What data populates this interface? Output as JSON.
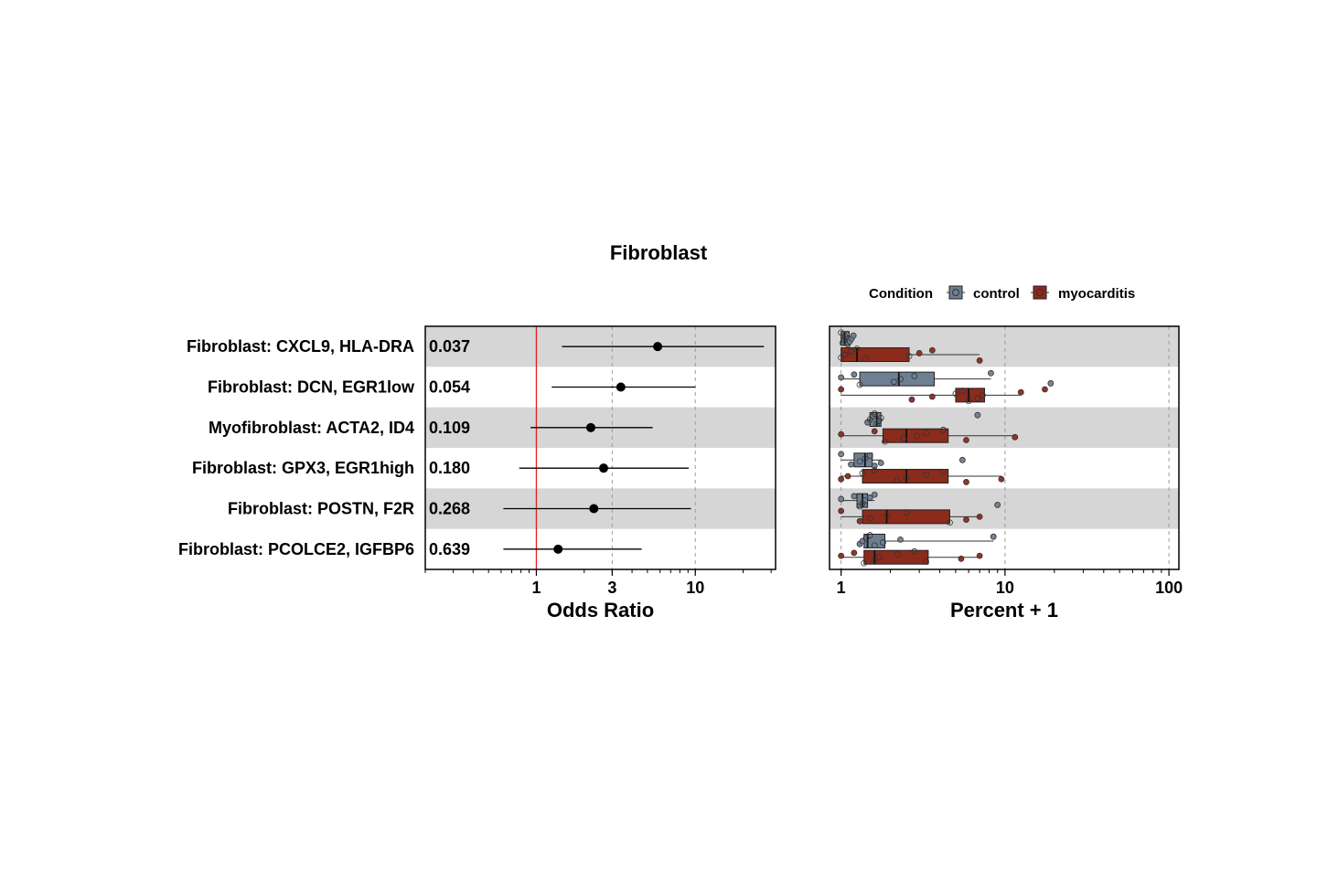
{
  "colors": {
    "stripe": "#d6d6d6",
    "reference_line": "#e0201b",
    "grid": "#9a9a9a",
    "control": "#6e7f92",
    "myocarditis": "#8b2b1c",
    "point": "#000000"
  },
  "chart_data": [
    {
      "type": "forest",
      "title": "Fibroblast",
      "xlabel": "Odds Ratio",
      "xscale": "log",
      "xlim": [
        0.2,
        32
      ],
      "xticks": [
        1,
        3,
        10
      ],
      "xtick_labels": [
        "1",
        "3",
        "10"
      ],
      "reference_line": 1,
      "grid": "dashed vertical at ticks",
      "rows": [
        {
          "label": "Fibroblast: CXCL9, HLA-DRA",
          "p_label": "0.037",
          "or": 5.8,
          "lo": 1.45,
          "hi": 27
        },
        {
          "label": "Fibroblast: DCN, EGR1low",
          "p_label": "0.054",
          "or": 3.4,
          "lo": 1.25,
          "hi": 10
        },
        {
          "label": "Myofibroblast: ACTA2, ID4",
          "p_label": "0.109",
          "or": 2.2,
          "lo": 0.92,
          "hi": 5.4
        },
        {
          "label": "Fibroblast: GPX3, EGR1high",
          "p_label": "0.180",
          "or": 2.65,
          "lo": 0.78,
          "hi": 9.1
        },
        {
          "label": "Fibroblast: POSTN, F2R",
          "p_label": "0.268",
          "or": 2.3,
          "lo": 0.62,
          "hi": 9.4
        },
        {
          "label": "Fibroblast: PCOLCE2, IGFBP6",
          "p_label": "0.639",
          "or": 1.37,
          "lo": 0.62,
          "hi": 4.6
        }
      ]
    },
    {
      "type": "boxplot",
      "xlabel": "Percent + 1",
      "xscale": "log",
      "xlim": [
        0.85,
        115
      ],
      "xticks": [
        1,
        10,
        100
      ],
      "xtick_labels": [
        "1",
        "10",
        "100"
      ],
      "grid": "dashed vertical at ticks",
      "legend": {
        "title": "Condition",
        "position": "top-right",
        "entries": [
          "control",
          "myocarditis"
        ]
      },
      "rows": [
        {
          "control": {
            "min": 1.0,
            "q1": 1.0,
            "median": 1.05,
            "q3": 1.12,
            "max": 1.2,
            "points": [
              1.0,
              1.02,
              1.04,
              1.06,
              1.08,
              1.1,
              1.13,
              1.16,
              1.19
            ]
          },
          "myocarditis": {
            "min": 1.0,
            "q1": 1.0,
            "median": 1.25,
            "q3": 2.6,
            "max": 7.0,
            "points": [
              1.0,
              1.05,
              1.15,
              1.25,
              1.4,
              2.6,
              3.0,
              3.6,
              7.0
            ]
          }
        },
        {
          "control": {
            "min": 1.0,
            "q1": 1.3,
            "median": 2.25,
            "q3": 3.7,
            "max": 8.2,
            "points": [
              1.0,
              1.2,
              1.3,
              2.1,
              2.3,
              2.8,
              8.2,
              19.0
            ]
          },
          "myocarditis": {
            "min": 1.0,
            "q1": 5.0,
            "median": 6.0,
            "q3": 7.5,
            "max": 12.5,
            "points": [
              1.0,
              2.7,
              3.6,
              5.0,
              5.5,
              6.0,
              6.8,
              7.3,
              12.5,
              17.5
            ]
          }
        },
        {
          "control": {
            "min": 1.45,
            "q1": 1.5,
            "median": 1.65,
            "q3": 1.75,
            "max": 1.8,
            "points": [
              1.45,
              1.5,
              1.55,
              1.6,
              1.65,
              1.7,
              1.75,
              6.8
            ]
          },
          "myocarditis": {
            "min": 1.0,
            "q1": 1.8,
            "median": 2.5,
            "q3": 4.5,
            "max": 11.5,
            "points": [
              1.0,
              1.6,
              1.85,
              2.4,
              2.9,
              3.3,
              4.2,
              5.8,
              11.5
            ]
          }
        },
        {
          "control": {
            "min": 1.0,
            "q1": 1.2,
            "median": 1.4,
            "q3": 1.55,
            "max": 1.75,
            "points": [
              1.0,
              1.15,
              1.3,
              1.4,
              1.5,
              1.6,
              1.75,
              5.5
            ]
          },
          "myocarditis": {
            "min": 1.0,
            "q1": 1.35,
            "median": 2.5,
            "q3": 4.5,
            "max": 9.5,
            "points": [
              1.0,
              1.1,
              1.35,
              1.6,
              2.2,
              2.5,
              3.3,
              4.2,
              5.8,
              9.5
            ]
          }
        },
        {
          "control": {
            "min": 1.0,
            "q1": 1.25,
            "median": 1.35,
            "q3": 1.45,
            "max": 1.6,
            "points": [
              1.0,
              1.2,
              1.3,
              1.35,
              1.4,
              1.5,
              1.6,
              9.0
            ]
          },
          "myocarditis": {
            "min": 1.0,
            "q1": 1.35,
            "median": 1.9,
            "q3": 4.6,
            "max": 7.0,
            "points": [
              1.0,
              1.3,
              1.5,
              1.9,
              2.5,
              4.6,
              5.8,
              7.0
            ]
          }
        },
        {
          "control": {
            "min": 1.3,
            "q1": 1.38,
            "median": 1.45,
            "q3": 1.85,
            "max": 8.5,
            "points": [
              1.3,
              1.35,
              1.42,
              1.5,
              1.6,
              1.8,
              2.3,
              8.5
            ]
          },
          "myocarditis": {
            "min": 1.0,
            "q1": 1.38,
            "median": 1.6,
            "q3": 3.4,
            "max": 7.0,
            "points": [
              1.0,
              1.2,
              1.38,
              1.6,
              1.7,
              2.2,
              2.8,
              3.3,
              5.4,
              7.0
            ]
          }
        }
      ]
    }
  ]
}
